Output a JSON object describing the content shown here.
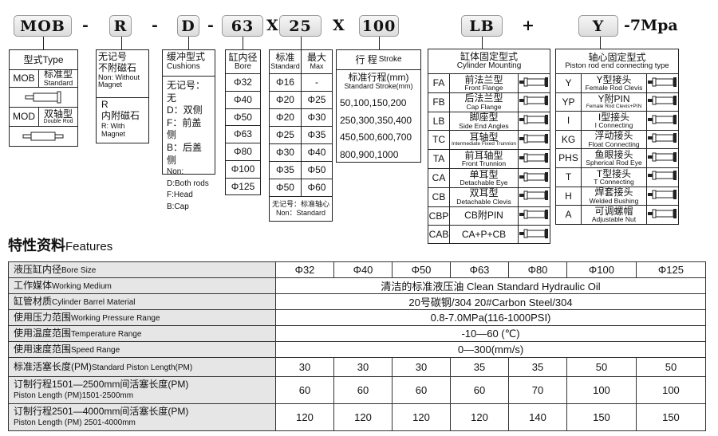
{
  "model_code": {
    "parts": [
      "MOB",
      "R",
      "D",
      "63",
      "25",
      "100",
      "LB",
      "Y"
    ],
    "separators": [
      "-",
      "-",
      "-",
      "X",
      "X",
      "+"
    ],
    "suffix": "-7Mpa"
  },
  "type_block": {
    "header": "型式Type",
    "rows": [
      {
        "code": "MOB",
        "cn": "标准型",
        "en": "Standard",
        "icon": "single-rod-cylinder-icon"
      },
      {
        "code": "MOD",
        "cn": "双轴型",
        "en": "Double Rod",
        "icon": "double-rod-cylinder-icon"
      }
    ]
  },
  "magnet_block": {
    "none_cn": "无记号",
    "none_cn2": "不附磁石",
    "none_en": "Non: Without Magnet",
    "r_code": "R",
    "r_cn": "内附磁石",
    "r_en": "R: With Magnet"
  },
  "cushion_block": {
    "header_cn": "缓冲型式",
    "header_en": "Cushions",
    "lines_cn": [
      "无记号：无",
      "D：双侧",
      "F：前盖侧",
      "B：后盖侧"
    ],
    "lines_en": [
      "Non:",
      "D:Both rods",
      "F:Head",
      "B:Cap"
    ]
  },
  "bore_block": {
    "header_cn": "缸内径",
    "header_en": "Bore",
    "values": [
      "Φ32",
      "Φ40",
      "Φ50",
      "Φ63",
      "Φ80",
      "Φ100",
      "Φ125"
    ]
  },
  "rod_block": {
    "std_cn": "标准",
    "std_en": "Standard",
    "max_cn": "最大",
    "max_en": "Max",
    "rows": [
      [
        "Φ16",
        "-"
      ],
      [
        "Φ20",
        "Φ25"
      ],
      [
        "Φ20",
        "Φ30"
      ],
      [
        "Φ25",
        "Φ35"
      ],
      [
        "Φ30",
        "Φ40"
      ],
      [
        "Φ35",
        "Φ50"
      ],
      [
        "Φ50",
        "Φ60"
      ]
    ],
    "footer_cn": "无记号：标准轴心",
    "footer_en": "Non：Standard"
  },
  "stroke_block": {
    "header_cn": "行 程",
    "header_en": "Stroke",
    "sub_cn": "标准行程(mm)",
    "sub_en": "Standard Stroke(mm)",
    "rows": [
      "50,100,150,200",
      "250,300,350,400",
      "450,500,600,700",
      "800,900,1000"
    ]
  },
  "mount_block": {
    "header_cn": "缸体固定型式",
    "header_en": "Cylinder Mounting",
    "rows": [
      {
        "code": "FA",
        "cn": "前法兰型",
        "en": "Front Flange",
        "icon": "front-flange-icon"
      },
      {
        "code": "FB",
        "cn": "后法兰型",
        "en": "Cap Flange",
        "icon": "cap-flange-icon"
      },
      {
        "code": "LB",
        "cn": "脚座型",
        "en": "Side End Angles",
        "icon": "side-end-angles-icon"
      },
      {
        "code": "TC",
        "cn": "耳轴型",
        "en": "Intermediate Fixed Trunnion",
        "icon": "trunnion-icon"
      },
      {
        "code": "TA",
        "cn": "前耳轴型",
        "en": "Front Trunnion",
        "icon": "front-trunnion-icon"
      },
      {
        "code": "CA",
        "cn": "单耳型",
        "en": "Detachable Eye",
        "icon": "detachable-eye-icon"
      },
      {
        "code": "CB",
        "cn": "双耳型",
        "en": "Detachable Clevis",
        "icon": "detachable-clevis-icon"
      },
      {
        "code": "CBP",
        "cn": "CB附PIN",
        "en": "",
        "icon": "clevis-pin-icon"
      },
      {
        "code": "CAB",
        "cn": "CA+P+CB",
        "en": "",
        "icon": "clevis-set-icon"
      }
    ]
  },
  "rod_end_block": {
    "header_cn": "轴心固定型式",
    "header_en": "Piston rod end connecting type",
    "rows": [
      {
        "code": "Y",
        "cn": "Y型接头",
        "en": "Female Rod Clevis",
        "icon": "rod-clevis-icon"
      },
      {
        "code": "YP",
        "cn": "Y附PIN",
        "en": "Female Rod Clevis+PIN",
        "icon": "rod-clevis-pin-icon"
      },
      {
        "code": "I",
        "cn": "I型接头",
        "en": "I Connecting",
        "icon": "i-connector-icon"
      },
      {
        "code": "KG",
        "cn": "浮动接头",
        "en": "Float Connecting",
        "icon": "float-connector-icon"
      },
      {
        "code": "PHS",
        "cn": "鱼眼接头",
        "en": "Spherical Rod Eye",
        "icon": "rod-eye-icon"
      },
      {
        "code": "T",
        "cn": "T型接头",
        "en": "T Connecting",
        "icon": "t-connector-icon"
      },
      {
        "code": "H",
        "cn": "焊套接头",
        "en": "Welded Bushing",
        "icon": "welded-bushing-icon"
      },
      {
        "code": "A",
        "cn": "可调螺帽",
        "en": "Adjustable Nut",
        "icon": "adjustable-nut-icon"
      }
    ]
  },
  "features": {
    "title_cn": "特性资料",
    "title_en": "Features",
    "bore_label_cn": "液压缸内径",
    "bore_label_en": "Bore Size",
    "bores": [
      "Φ32",
      "Φ40",
      "Φ50",
      "Φ63",
      "Φ80",
      "Φ100",
      "Φ125"
    ],
    "span_rows": [
      {
        "cn": "工作媒体",
        "en": "Working Medium",
        "value": "清洁的标准液压油 Clean Standard Hydraulic Oil"
      },
      {
        "cn": "缸管材质",
        "en": "Cylinder Barrel Material",
        "value": "20号碳钢/304 20#Carbon Steel/304"
      },
      {
        "cn": "使用压力范围",
        "en": "Working Pressure Range",
        "value": "0.8-7.0MPa(116-1000PSI)"
      },
      {
        "cn": "使用温度范围",
        "en": "Temperature Range",
        "value": "-10—60 (℃)"
      },
      {
        "cn": "使用速度范围",
        "en": "Speed Range",
        "value": "0—300(mm/s)"
      }
    ],
    "value_rows": [
      {
        "cn": "标准活塞长度(PM)",
        "en": "Standard Piston Length(PM)",
        "values": [
          "30",
          "30",
          "30",
          "35",
          "35",
          "50",
          "50"
        ]
      },
      {
        "cn": "订制行程1501—2500mm间活塞长度(PM)",
        "en": "Piston Length (PM)1501-2500mm",
        "values": [
          "60",
          "60",
          "60",
          "60",
          "70",
          "100",
          "100"
        ]
      },
      {
        "cn": "订制行程2501—4000mm间活塞长度(PM)",
        "en": "Piston Length (PM) 2501-4000mm",
        "values": [
          "120",
          "120",
          "120",
          "120",
          "140",
          "150",
          "150"
        ]
      }
    ]
  }
}
